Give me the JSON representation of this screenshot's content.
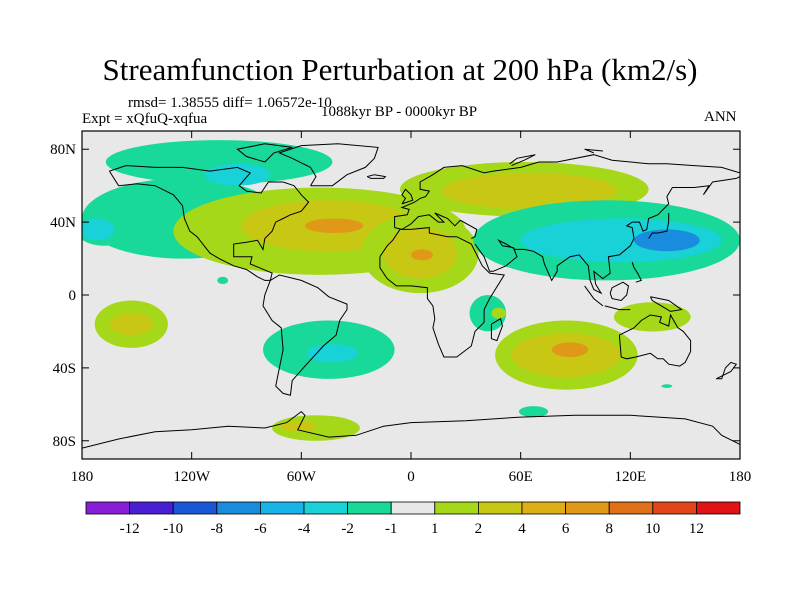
{
  "chart_data": {
    "type": "heatmap",
    "title": "Streamfunction Perturbation at 200 hPa (km2/s)",
    "stats_text": "rmsd= 1.38555 diff= 1.06572e-10",
    "experiment_text": "Expt = xQfuQ-xqfua",
    "period_text": "1088kyr BP - 0000kyr BP",
    "season_text": "ANN",
    "x_axis": {
      "range": [
        -180,
        180
      ],
      "ticks": [
        {
          "value": -180,
          "label": "180"
        },
        {
          "value": -120,
          "label": "120W"
        },
        {
          "value": -60,
          "label": "60W"
        },
        {
          "value": 0,
          "label": "0"
        },
        {
          "value": 60,
          "label": "60E"
        },
        {
          "value": 120,
          "label": "120E"
        },
        {
          "value": 180,
          "label": "180"
        }
      ]
    },
    "y_axis": {
      "range": [
        -90,
        90
      ],
      "ticks": [
        {
          "value": 80,
          "label": "80N"
        },
        {
          "value": 40,
          "label": "40N"
        },
        {
          "value": 0,
          "label": "0"
        },
        {
          "value": -40,
          "label": "40S"
        },
        {
          "value": -80,
          "label": "80S"
        }
      ]
    },
    "colorbar": {
      "colors": [
        "#8a1ed6",
        "#4a1fd4",
        "#1a56d6",
        "#1a8cde",
        "#18b4e8",
        "#18d2d8",
        "#18d89a",
        "#e8e8e8",
        "#a6d81a",
        "#c8c814",
        "#dcb014",
        "#e09818",
        "#e07018",
        "#e04418",
        "#e01414"
      ],
      "labels": [
        "-12",
        "-10",
        "-8",
        "-6",
        "-4",
        "-2",
        "-1",
        "1",
        "2",
        "4",
        "6",
        "8",
        "10",
        "12"
      ]
    },
    "anomalies": [
      {
        "lon": -125,
        "lat": 42,
        "rx": 55,
        "ry": 22,
        "level": -1
      },
      {
        "lon": -105,
        "lat": 73,
        "rx": 62,
        "ry": 12,
        "level": -1
      },
      {
        "lon": -95,
        "lat": 66,
        "rx": 18,
        "ry": 6,
        "level": -2
      },
      {
        "lon": -168,
        "lat": 37,
        "rx": 16,
        "ry": 10,
        "level": -1
      },
      {
        "lon": -172,
        "lat": 36,
        "rx": 10,
        "ry": 6,
        "level": -2
      },
      {
        "lon": -50,
        "lat": 35,
        "rx": 80,
        "ry": 24,
        "level": 1
      },
      {
        "lon": -45,
        "lat": 38,
        "rx": 48,
        "ry": 14,
        "level": 2
      },
      {
        "lon": -42,
        "lat": 38,
        "rx": 16,
        "ry": 4,
        "level": 4
      },
      {
        "lon": 5,
        "lat": 23,
        "rx": 32,
        "ry": 22,
        "level": 1
      },
      {
        "lon": 5,
        "lat": 23,
        "rx": 20,
        "ry": 14,
        "level": 2
      },
      {
        "lon": 6,
        "lat": 22,
        "rx": 6,
        "ry": 3,
        "level": 4
      },
      {
        "lon": 62,
        "lat": 58,
        "rx": 68,
        "ry": 15,
        "level": 1
      },
      {
        "lon": 65,
        "lat": 57,
        "rx": 48,
        "ry": 10,
        "level": 2
      },
      {
        "lon": 107,
        "lat": 30,
        "rx": 73,
        "ry": 22,
        "level": -1
      },
      {
        "lon": 115,
        "lat": 30,
        "rx": 55,
        "ry": 12,
        "level": -2
      },
      {
        "lon": 140,
        "lat": 30,
        "rx": 18,
        "ry": 6,
        "level": -4
      },
      {
        "lon": -153,
        "lat": -16,
        "rx": 20,
        "ry": 13,
        "level": 1
      },
      {
        "lon": -153,
        "lat": -16,
        "rx": 12,
        "ry": 6,
        "level": 2
      },
      {
        "lon": -45,
        "lat": -30,
        "rx": 36,
        "ry": 16,
        "level": -1
      },
      {
        "lon": -43,
        "lat": -32,
        "rx": 14,
        "ry": 5,
        "level": -2
      },
      {
        "lon": 85,
        "lat": -33,
        "rx": 39,
        "ry": 19,
        "level": 1
      },
      {
        "lon": 85,
        "lat": -33,
        "rx": 30,
        "ry": 12,
        "level": 2
      },
      {
        "lon": 87,
        "lat": -30,
        "rx": 10,
        "ry": 4,
        "level": 4
      },
      {
        "lon": 132,
        "lat": -12,
        "rx": 21,
        "ry": 8,
        "level": 1
      },
      {
        "lon": 42,
        "lat": -10,
        "rx": 10,
        "ry": 10,
        "level": -1
      },
      {
        "lon": 48,
        "lat": -10,
        "rx": 4,
        "ry": 3,
        "level": 1
      },
      {
        "lon": 67,
        "lat": -64,
        "rx": 8,
        "ry": 3,
        "level": -1
      },
      {
        "lon": -52,
        "lat": -73,
        "rx": 24,
        "ry": 7,
        "level": 1
      },
      {
        "lon": -62,
        "lat": -72,
        "rx": 10,
        "ry": 3,
        "level": 2
      },
      {
        "lon": -103,
        "lat": 8,
        "rx": 3,
        "ry": 2,
        "level": -1
      },
      {
        "lon": 140,
        "lat": -50,
        "rx": 3,
        "ry": 1,
        "level": -1
      }
    ]
  }
}
